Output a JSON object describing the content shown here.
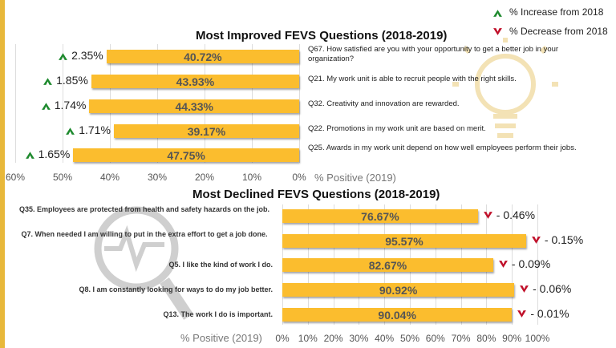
{
  "legend": [
    {
      "icon": "up-chevron-icon",
      "label": "% Increase from 2018",
      "color": "#1e8a2e"
    },
    {
      "icon": "down-chevron-icon",
      "label": "% Decrease from 2018",
      "color": "#c0102a"
    }
  ],
  "chart_data": [
    {
      "type": "bar",
      "orientation": "horizontal-reversed",
      "title": "Most Improved FEVS Questions (2018-2019)",
      "xlabel": "% Positive (2019)",
      "xlim": [
        0,
        60
      ],
      "ticks": [
        "60%",
        "50%",
        "40%",
        "30%",
        "20%",
        "10%",
        "0%"
      ],
      "categories": [
        "Q67. How satisfied are you with your opportunity to get a better job in your organization?",
        "Q21. My work unit is able to recruit people with the right skills.",
        "Q32. Creativity and innovation are rewarded.",
        "Q22. Promotions in my work unit are based on merit.",
        "Q25. Awards in my work unit depend on how well employees perform their jobs."
      ],
      "values": [
        40.72,
        43.93,
        44.33,
        39.17,
        47.75
      ],
      "labels": [
        "40.72%",
        "43.93%",
        "44.33%",
        "39.17%",
        "47.75%"
      ],
      "changes": [
        "2.35%",
        "1.85%",
        "1.74%",
        "1.71%",
        "1.65%"
      ]
    },
    {
      "type": "bar",
      "orientation": "horizontal",
      "title": "Most Declined FEVS Questions (2018-2019)",
      "xlabel": "% Positive (2019)",
      "xlim": [
        0,
        100
      ],
      "ticks": [
        "0%",
        "10%",
        "20%",
        "30%",
        "40%",
        "50%",
        "60%",
        "70%",
        "80%",
        "90%",
        "100%"
      ],
      "categories": [
        "Q35. Employees are protected from health and safety hazards on the job.",
        "Q7. When needed I am willing to put in the extra effort to get a job done.",
        "Q5. I like the kind of work I do.",
        "Q8. I am constantly looking for ways to do my job better.",
        "Q13. The work I do is important."
      ],
      "values": [
        76.67,
        95.57,
        82.67,
        90.92,
        90.04
      ],
      "labels": [
        "76.67%",
        "95.57%",
        "82.67%",
        "90.92%",
        "90.04%"
      ],
      "changes": [
        "- 0.46%",
        "- 0.15%",
        "- 0.09%",
        "- 0.06%",
        "- 0.01%"
      ]
    }
  ]
}
